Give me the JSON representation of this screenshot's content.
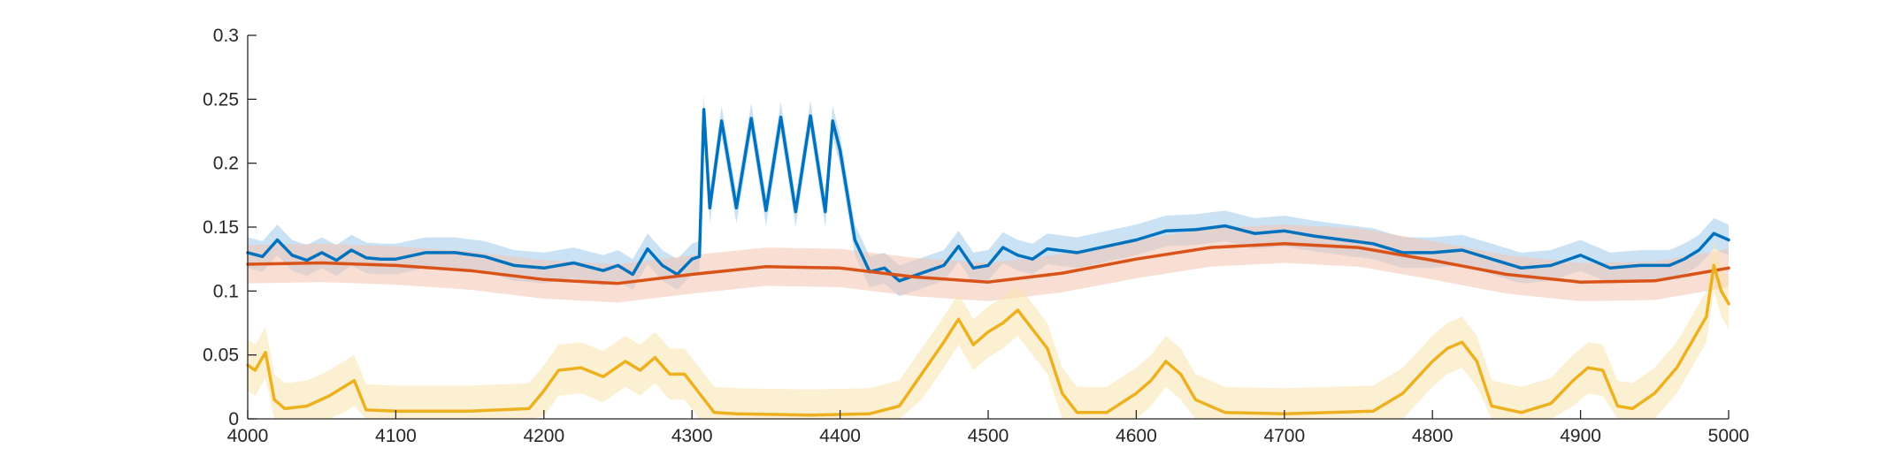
{
  "chart_data": {
    "type": "line",
    "title": "",
    "xlabel": "",
    "ylabel": "",
    "xlim": [
      4000,
      5000
    ],
    "ylim": [
      0,
      0.3
    ],
    "grid": false,
    "x_ticks": [
      4000,
      4100,
      4200,
      4300,
      4400,
      4500,
      4600,
      4700,
      4800,
      4900,
      5000
    ],
    "y_ticks": [
      0,
      0.05,
      0.1,
      0.15,
      0.2,
      0.25,
      0.3
    ],
    "x_tick_labels": [
      "4000",
      "4100",
      "4200",
      "4300",
      "4400",
      "4500",
      "4600",
      "4700",
      "4800",
      "4900",
      "5000"
    ],
    "y_tick_labels": [
      "0",
      "0.05",
      "0.1",
      "0.15",
      "0.2",
      "0.25",
      "0.3"
    ],
    "series": [
      {
        "color": "#0072BD",
        "band_color": "#9ECAE9",
        "x": [
          4000,
          4010,
          4020,
          4030,
          4040,
          4050,
          4060,
          4070,
          4080,
          4090,
          4100,
          4120,
          4140,
          4160,
          4180,
          4200,
          4220,
          4240,
          4250,
          4260,
          4270,
          4280,
          4290,
          4300,
          4305,
          4308,
          4312,
          4320,
          4330,
          4340,
          4350,
          4360,
          4370,
          4380,
          4390,
          4395,
          4400,
          4410,
          4420,
          4430,
          4440,
          4450,
          4460,
          4470,
          4480,
          4490,
          4500,
          4510,
          4520,
          4530,
          4540,
          4560,
          4580,
          4600,
          4620,
          4640,
          4660,
          4680,
          4700,
          4720,
          4740,
          4760,
          4780,
          4800,
          4820,
          4840,
          4860,
          4880,
          4900,
          4920,
          4940,
          4960,
          4970,
          4980,
          4990,
          5000
        ],
        "y": [
          0.13,
          0.127,
          0.14,
          0.128,
          0.124,
          0.13,
          0.124,
          0.132,
          0.126,
          0.125,
          0.125,
          0.13,
          0.13,
          0.127,
          0.12,
          0.118,
          0.122,
          0.116,
          0.12,
          0.113,
          0.133,
          0.12,
          0.113,
          0.125,
          0.127,
          0.242,
          0.165,
          0.233,
          0.165,
          0.235,
          0.163,
          0.236,
          0.162,
          0.237,
          0.162,
          0.233,
          0.21,
          0.14,
          0.115,
          0.118,
          0.108,
          0.112,
          0.116,
          0.12,
          0.135,
          0.118,
          0.12,
          0.134,
          0.128,
          0.125,
          0.133,
          0.13,
          0.135,
          0.14,
          0.147,
          0.148,
          0.151,
          0.145,
          0.147,
          0.143,
          0.14,
          0.137,
          0.13,
          0.13,
          0.132,
          0.125,
          0.118,
          0.12,
          0.128,
          0.118,
          0.12,
          0.12,
          0.125,
          0.132,
          0.145,
          0.14
        ],
        "band_half_width": 0.012
      },
      {
        "color": "#D95319",
        "band_color": "#F4C3B0",
        "x": [
          4000,
          4050,
          4100,
          4150,
          4200,
          4250,
          4300,
          4350,
          4400,
          4450,
          4500,
          4550,
          4600,
          4650,
          4700,
          4750,
          4800,
          4850,
          4900,
          4950,
          5000
        ],
        "y": [
          0.121,
          0.122,
          0.12,
          0.116,
          0.109,
          0.106,
          0.113,
          0.119,
          0.118,
          0.111,
          0.107,
          0.114,
          0.125,
          0.134,
          0.137,
          0.134,
          0.124,
          0.113,
          0.107,
          0.108,
          0.118
        ],
        "band_half_width": 0.015
      },
      {
        "color": "#EDB120",
        "band_color": "#F9E4AE",
        "x": [
          4000,
          4005,
          4012,
          4018,
          4025,
          4040,
          4055,
          4065,
          4072,
          4080,
          4100,
          4150,
          4190,
          4200,
          4210,
          4225,
          4240,
          4255,
          4265,
          4275,
          4285,
          4295,
          4305,
          4315,
          4330,
          4380,
          4420,
          4440,
          4455,
          4470,
          4480,
          4490,
          4500,
          4510,
          4520,
          4530,
          4540,
          4550,
          4560,
          4580,
          4600,
          4610,
          4620,
          4630,
          4640,
          4660,
          4700,
          4760,
          4780,
          4800,
          4810,
          4820,
          4830,
          4840,
          4860,
          4880,
          4895,
          4905,
          4915,
          4925,
          4935,
          4950,
          4965,
          4975,
          4985,
          4990,
          4995,
          5000
        ],
        "y": [
          0.042,
          0.038,
          0.052,
          0.015,
          0.008,
          0.01,
          0.018,
          0.025,
          0.03,
          0.007,
          0.006,
          0.006,
          0.008,
          0.022,
          0.038,
          0.04,
          0.033,
          0.045,
          0.038,
          0.048,
          0.035,
          0.035,
          0.02,
          0.005,
          0.004,
          0.003,
          0.004,
          0.01,
          0.035,
          0.06,
          0.078,
          0.058,
          0.068,
          0.075,
          0.085,
          0.07,
          0.055,
          0.02,
          0.005,
          0.005,
          0.02,
          0.03,
          0.045,
          0.035,
          0.015,
          0.005,
          0.004,
          0.006,
          0.02,
          0.045,
          0.055,
          0.06,
          0.045,
          0.01,
          0.005,
          0.012,
          0.03,
          0.04,
          0.038,
          0.01,
          0.008,
          0.02,
          0.04,
          0.06,
          0.08,
          0.12,
          0.1,
          0.09
        ],
        "band_half_width": 0.02
      }
    ]
  }
}
